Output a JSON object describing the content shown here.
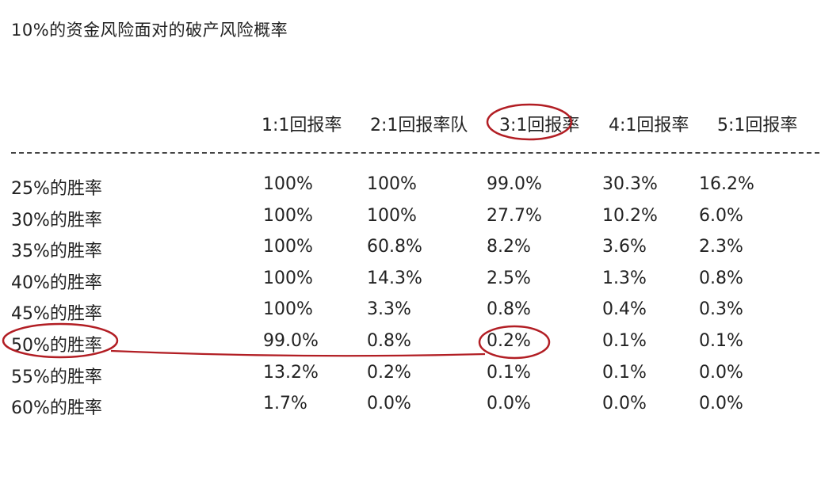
{
  "title": "10%的资金风险面对的破产风险概率",
  "columns": [
    "1:1回报率",
    "2:1回报率队",
    "3:1回报率",
    "4:1回报率",
    "5:1回报率"
  ],
  "rows": [
    {
      "label": "25%的胜率",
      "values": [
        "100%",
        "100%",
        "99.0%",
        "30.3%",
        "16.2%"
      ]
    },
    {
      "label": "30%的胜率",
      "values": [
        "100%",
        "100%",
        "27.7%",
        "10.2%",
        "6.0%"
      ]
    },
    {
      "label": "35%的胜率",
      "values": [
        "100%",
        "60.8%",
        "8.2%",
        "3.6%",
        "2.3%"
      ]
    },
    {
      "label": "40%的胜率",
      "values": [
        "100%",
        "14.3%",
        "2.5%",
        "1.3%",
        "0.8%"
      ]
    },
    {
      "label": "45%的胜率",
      "values": [
        "100%",
        "3.3%",
        "0.8%",
        "0.4%",
        "0.3%"
      ]
    },
    {
      "label": "50%的胜率",
      "values": [
        "99.0%",
        "0.8%",
        "0.2%",
        "0.1%",
        "0.1%"
      ]
    },
    {
      "label": "55%的胜率",
      "values": [
        "13.2%",
        "0.2%",
        "0.1%",
        "0.1%",
        "0.0%"
      ]
    },
    {
      "label": "60%的胜率",
      "values": [
        "1.7%",
        "0.0%",
        "0.0%",
        "0.0%",
        "0.0%"
      ]
    }
  ],
  "highlight_color": "#b21e24"
}
